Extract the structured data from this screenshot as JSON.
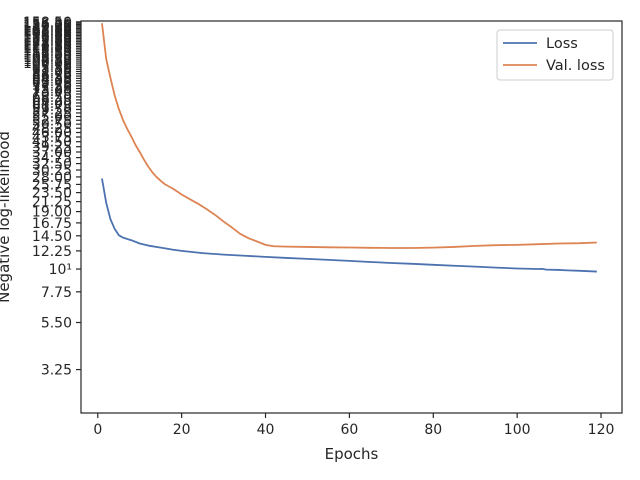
{
  "chart_data": {
    "type": "line",
    "xlabel": "Epochs",
    "ylabel": "Negative log-likelihood",
    "xlim": [
      -4,
      125
    ],
    "ylim": [
      2.0,
      160.0
    ],
    "yscale": "log",
    "x_ticks": [
      0,
      20,
      40,
      60,
      80,
      100,
      120
    ],
    "x_tick_labels": [
      "0",
      "20",
      "40",
      "60",
      "80",
      "100",
      "120"
    ],
    "y_ticks": [
      3.25,
      5.5,
      7.75,
      10,
      12.25,
      14.5,
      16.75,
      19.0,
      21.25,
      23.5,
      25.75,
      28.0,
      30.25,
      32.5,
      34.75,
      37.0,
      39.25,
      41.5,
      43.75,
      46.0,
      48.25,
      50.5,
      52.75,
      55.0,
      57.25,
      59.5,
      61.75,
      64.0,
      66.25,
      68.5,
      70.75,
      73.0,
      75.25,
      77.5,
      79.75,
      82.0,
      84.25,
      86.5,
      88.75,
      91.0,
      93.25,
      95.5,
      97.75,
      100.0,
      102.25,
      104.5,
      106.75,
      109.0,
      111.25,
      113.5,
      115.75,
      118.0,
      120.25,
      122.5,
      124.75,
      127.0,
      129.25,
      131.5,
      133.75,
      136.0,
      138.25,
      140.5,
      142.75,
      145.0,
      147.25,
      149.5,
      151.75,
      154.0,
      156.25,
      158.5
    ],
    "y_tick_labels": [
      "3.25",
      "5.50",
      "7.75",
      "10¹",
      "12.25",
      "14.50",
      "16.75",
      "19.00",
      "21.25",
      "23.50",
      "25.75",
      "28.00",
      "30.25",
      "32.50",
      "34.75",
      "37.00",
      "39.25",
      "41.50",
      "43.75",
      "46.00",
      "48.25",
      "50.50",
      "52.75",
      "55.00",
      "57.25",
      "59.50",
      "61.75",
      "64.00",
      "66.25",
      "68.50",
      "70.75",
      "73.00",
      "75.25",
      "77.50",
      "79.75",
      "82.00",
      "84.25",
      "86.50",
      "88.75",
      "91.00",
      "93.25",
      "95.50",
      "97.75",
      "100.00",
      "102.25",
      "104.50",
      "106.75",
      "109.00",
      "111.25",
      "113.50",
      "115.75",
      "118.00",
      "120.25",
      "122.50",
      "124.75",
      "127.00",
      "129.25",
      "131.50",
      "133.75",
      "136.00",
      "138.25",
      "140.50",
      "142.75",
      "145.00",
      "147.25",
      "149.50",
      "151.75",
      "154.00",
      "156.25",
      "158.50"
    ],
    "grid": false,
    "legend_position": "upper right",
    "series": [
      {
        "name": "Loss",
        "color": "#4c72b0",
        "points": [
          [
            1,
            27.5
          ],
          [
            2,
            21.0
          ],
          [
            3,
            17.5
          ],
          [
            4,
            15.7
          ],
          [
            5,
            14.6
          ],
          [
            6,
            14.2
          ],
          [
            8,
            13.8
          ],
          [
            10,
            13.3
          ],
          [
            12,
            13.0
          ],
          [
            15,
            12.7
          ],
          [
            18,
            12.4
          ],
          [
            20,
            12.25
          ],
          [
            25,
            11.95
          ],
          [
            30,
            11.75
          ],
          [
            35,
            11.6
          ],
          [
            40,
            11.45
          ],
          [
            45,
            11.32
          ],
          [
            50,
            11.2
          ],
          [
            55,
            11.08
          ],
          [
            60,
            10.95
          ],
          [
            65,
            10.82
          ],
          [
            70,
            10.7
          ],
          [
            75,
            10.6
          ],
          [
            80,
            10.48
          ],
          [
            85,
            10.37
          ],
          [
            90,
            10.27
          ],
          [
            95,
            10.16
          ],
          [
            100,
            10.06
          ],
          [
            105,
            10.0
          ],
          [
            106,
            10.02
          ],
          [
            107,
            9.93
          ],
          [
            110,
            9.9
          ],
          [
            112,
            9.85
          ],
          [
            115,
            9.8
          ],
          [
            119,
            9.72
          ]
        ]
      },
      {
        "name": "Val. loss",
        "color": "#dd8452",
        "points": [
          [
            1,
            156.0
          ],
          [
            2,
            105.0
          ],
          [
            3,
            85.0
          ],
          [
            4,
            70.0
          ],
          [
            5,
            60.0
          ],
          [
            6,
            53.0
          ],
          [
            7,
            48.0
          ],
          [
            8,
            44.0
          ],
          [
            9,
            40.0
          ],
          [
            10,
            37.0
          ],
          [
            11,
            34.0
          ],
          [
            12,
            31.5
          ],
          [
            13,
            29.5
          ],
          [
            14,
            28.0
          ],
          [
            15,
            26.8
          ],
          [
            16,
            25.8
          ],
          [
            18,
            24.5
          ],
          [
            20,
            23.0
          ],
          [
            22,
            21.8
          ],
          [
            24,
            20.7
          ],
          [
            26,
            19.5
          ],
          [
            28,
            18.3
          ],
          [
            30,
            17.0
          ],
          [
            32,
            15.9
          ],
          [
            34,
            14.8
          ],
          [
            36,
            14.1
          ],
          [
            38,
            13.6
          ],
          [
            40,
            13.1
          ],
          [
            42,
            12.9
          ],
          [
            45,
            12.85
          ],
          [
            50,
            12.8
          ],
          [
            55,
            12.75
          ],
          [
            60,
            12.72
          ],
          [
            65,
            12.68
          ],
          [
            70,
            12.65
          ],
          [
            75,
            12.65
          ],
          [
            80,
            12.7
          ],
          [
            85,
            12.8
          ],
          [
            90,
            12.95
          ],
          [
            95,
            13.05
          ],
          [
            100,
            13.1
          ],
          [
            105,
            13.2
          ],
          [
            110,
            13.3
          ],
          [
            115,
            13.35
          ],
          [
            119,
            13.45
          ]
        ]
      }
    ]
  }
}
